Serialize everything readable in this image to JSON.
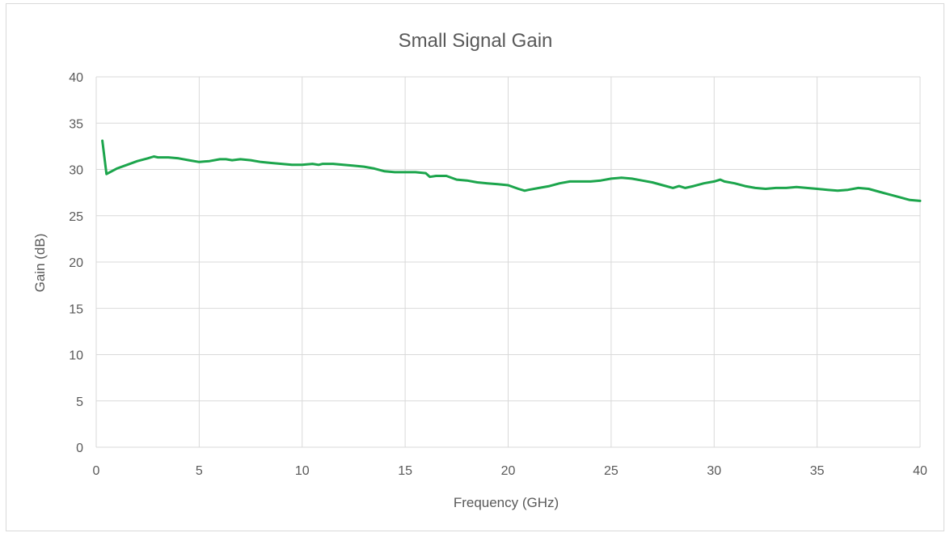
{
  "chart_data": {
    "type": "line",
    "title": "Small Signal Gain",
    "xlabel": "Frequency (GHz)",
    "ylabel": "Gain (dB)",
    "xlim": [
      0,
      40
    ],
    "ylim": [
      0,
      40
    ],
    "xticks": [
      0,
      5,
      10,
      15,
      20,
      25,
      30,
      35,
      40
    ],
    "yticks": [
      0,
      5,
      10,
      15,
      20,
      25,
      30,
      35,
      40
    ],
    "grid": true,
    "legend": "none",
    "series": [
      {
        "color": "#1ca54c",
        "x": [
          0.3,
          0.5,
          1.0,
          1.5,
          2.0,
          2.5,
          2.8,
          3.0,
          3.5,
          4.0,
          4.5,
          5.0,
          5.5,
          6.0,
          6.3,
          6.6,
          7.0,
          7.5,
          8.0,
          8.5,
          9.0,
          9.5,
          10.0,
          10.5,
          10.8,
          11.0,
          11.5,
          12.0,
          12.5,
          13.0,
          13.5,
          14.0,
          14.5,
          15.0,
          15.5,
          16.0,
          16.2,
          16.5,
          17.0,
          17.5,
          18.0,
          18.5,
          19.0,
          19.5,
          20.0,
          20.5,
          20.8,
          21.0,
          21.5,
          22.0,
          22.5,
          23.0,
          23.5,
          24.0,
          24.5,
          25.0,
          25.5,
          26.0,
          26.5,
          27.0,
          27.5,
          28.0,
          28.3,
          28.6,
          29.0,
          29.5,
          30.0,
          30.3,
          30.5,
          31.0,
          31.5,
          32.0,
          32.5,
          33.0,
          33.5,
          34.0,
          34.5,
          35.0,
          35.5,
          36.0,
          36.5,
          37.0,
          37.5,
          38.0,
          38.5,
          39.0,
          39.5,
          40.0
        ],
        "y": [
          33.1,
          29.5,
          30.1,
          30.5,
          30.9,
          31.2,
          31.4,
          31.3,
          31.3,
          31.2,
          31.0,
          30.8,
          30.9,
          31.1,
          31.1,
          31.0,
          31.1,
          31.0,
          30.8,
          30.7,
          30.6,
          30.5,
          30.5,
          30.6,
          30.5,
          30.6,
          30.6,
          30.5,
          30.4,
          30.3,
          30.1,
          29.8,
          29.7,
          29.7,
          29.7,
          29.6,
          29.2,
          29.3,
          29.3,
          28.9,
          28.8,
          28.6,
          28.5,
          28.4,
          28.3,
          27.9,
          27.7,
          27.8,
          28.0,
          28.2,
          28.5,
          28.7,
          28.7,
          28.7,
          28.8,
          29.0,
          29.1,
          29.0,
          28.8,
          28.6,
          28.3,
          28.0,
          28.2,
          28.0,
          28.2,
          28.5,
          28.7,
          28.9,
          28.7,
          28.5,
          28.2,
          28.0,
          27.9,
          28.0,
          28.0,
          28.1,
          28.0,
          27.9,
          27.8,
          27.7,
          27.8,
          28.0,
          27.9,
          27.6,
          27.3,
          27.0,
          26.7,
          26.6
        ]
      }
    ]
  }
}
